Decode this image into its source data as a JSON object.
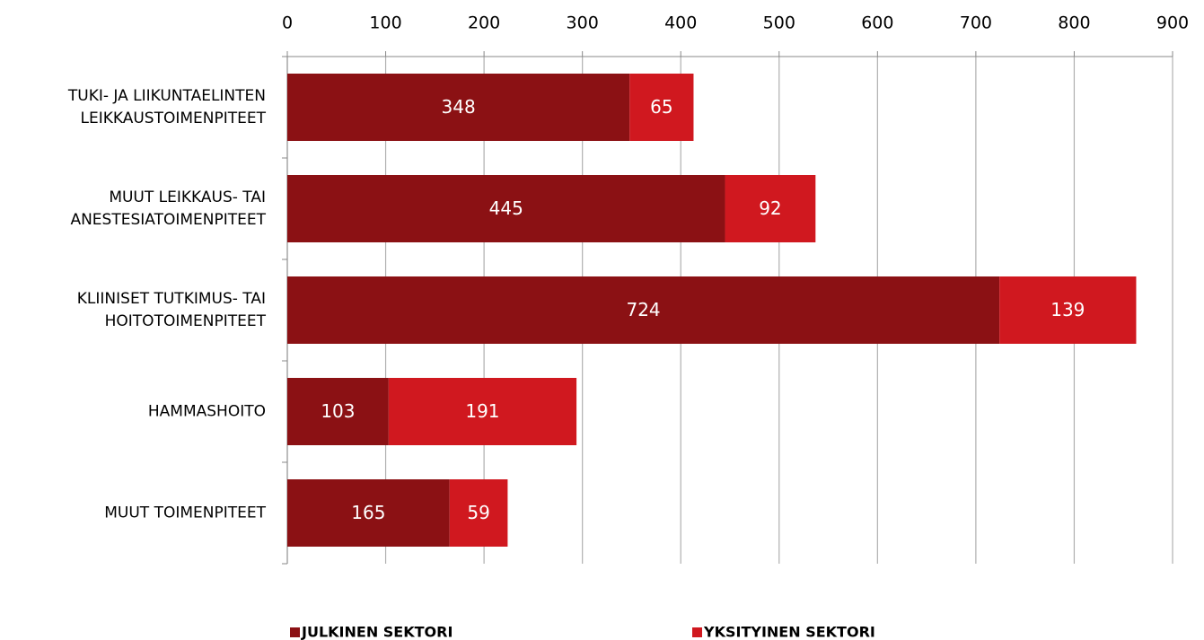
{
  "chart_data": {
    "type": "hbar_stacked",
    "categories": [
      "TUKI- JA LIIKUNTAELINTEN\nLEIKKAUSTOIMENPITEET",
      "MUUT LEIKKAUS- TAI\nANESTESIATOIMENPITEET",
      "KLIINISET TUTKIMUS- TAI\nHOITOTOIMENPITEET",
      "HAMMASHOITO",
      "MUUT TOIMENPITEET"
    ],
    "series": [
      {
        "name": "JULKINEN SEKTORI",
        "color": "#8b1114",
        "values": [
          348,
          445,
          724,
          103,
          165
        ]
      },
      {
        "name": "YKSITYINEN SEKTORI",
        "color": "#d0181f",
        "values": [
          65,
          92,
          139,
          191,
          59
        ]
      }
    ],
    "xlim": [
      0,
      900
    ],
    "xticks": [
      0,
      100,
      200,
      300,
      400,
      500,
      600,
      700,
      800,
      900
    ],
    "grid": true
  }
}
